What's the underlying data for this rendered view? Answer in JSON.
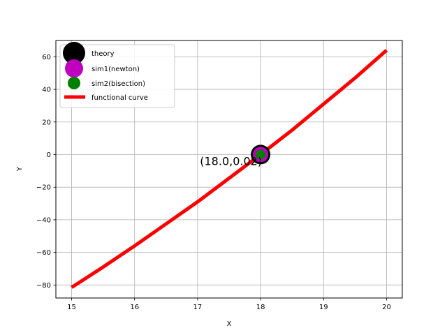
{
  "chart_data": {
    "type": "line",
    "title": "",
    "xlabel": "X",
    "ylabel": "Y",
    "xlim": [
      14.75,
      20.25
    ],
    "ylim": [
      -88,
      70
    ],
    "xticks": [
      15,
      16,
      17,
      18,
      19,
      20
    ],
    "yticks": [
      -80,
      -60,
      -40,
      -20,
      0,
      20,
      40,
      60
    ],
    "ytick_labels": [
      "−80",
      "−60",
      "−40",
      "−20",
      "0",
      "20",
      "40",
      "60"
    ],
    "grid": true,
    "legend_position": "top-left",
    "series": [
      {
        "name": "functional curve",
        "kind": "line",
        "color": "#ff0000",
        "x": [
          15,
          15.5,
          16,
          16.5,
          17,
          17.5,
          18,
          18.5,
          19,
          19.5,
          20
        ],
        "y": [
          -81.5,
          -69.0,
          -56.0,
          -42.5,
          -29.0,
          -14.5,
          0.02,
          15.0,
          31.0,
          47.0,
          64.0
        ]
      },
      {
        "name": "theory",
        "kind": "point",
        "color": "#000000",
        "x": [
          18.0
        ],
        "y": [
          0.02
        ],
        "size": 14
      },
      {
        "name": "sim1(newton)",
        "kind": "point",
        "color": "#bf00bf",
        "x": [
          18.0
        ],
        "y": [
          0.02
        ],
        "size": 11
      },
      {
        "name": "sim2(bisection)",
        "kind": "point",
        "color": "#008000",
        "x": [
          18.0
        ],
        "y": [
          0.02
        ],
        "size": 7
      }
    ],
    "annotations": [
      {
        "text": "(18.0,0.02)",
        "x": 18.0,
        "y": 0.02
      }
    ]
  }
}
